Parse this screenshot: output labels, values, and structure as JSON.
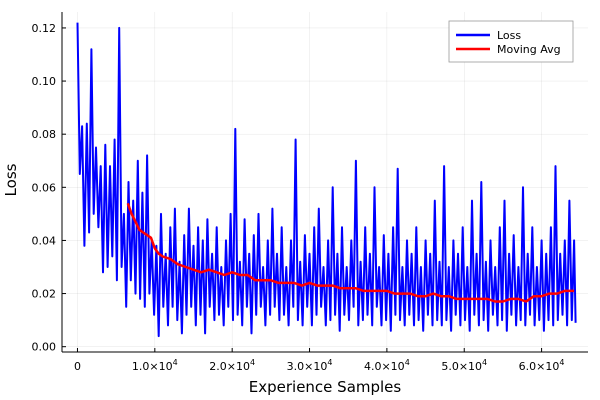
{
  "chart_data": {
    "type": "line",
    "title": "",
    "xlabel": "Experience Samples",
    "ylabel": "Loss",
    "xlim": [
      -2000,
      66000
    ],
    "ylim": [
      -0.002,
      0.126
    ],
    "grid": true,
    "legend_position": "top-right",
    "x_ticks": [
      {
        "value": 0,
        "mantissa": "0",
        "exp": ""
      },
      {
        "value": 10000,
        "mantissa": "1.0×10",
        "exp": "4"
      },
      {
        "value": 20000,
        "mantissa": "2.0×10",
        "exp": "4"
      },
      {
        "value": 30000,
        "mantissa": "3.0×10",
        "exp": "4"
      },
      {
        "value": 40000,
        "mantissa": "4.0×10",
        "exp": "4"
      },
      {
        "value": 50000,
        "mantissa": "5.0×10",
        "exp": "4"
      },
      {
        "value": 60000,
        "mantissa": "6.0×10",
        "exp": "4"
      }
    ],
    "y_ticks": [
      {
        "value": 0.0,
        "label": "0.00"
      },
      {
        "value": 0.02,
        "label": "0.02"
      },
      {
        "value": 0.04,
        "label": "0.04"
      },
      {
        "value": 0.06,
        "label": "0.06"
      },
      {
        "value": 0.08,
        "label": "0.08"
      },
      {
        "value": 0.1,
        "label": "0.10"
      },
      {
        "value": 0.12,
        "label": "0.12"
      }
    ],
    "series": [
      {
        "name": "Loss",
        "color": "#0000ff",
        "points": [
          [
            0,
            0.122
          ],
          [
            300,
            0.065
          ],
          [
            600,
            0.083
          ],
          [
            900,
            0.038
          ],
          [
            1200,
            0.084
          ],
          [
            1500,
            0.043
          ],
          [
            1800,
            0.112
          ],
          [
            2100,
            0.05
          ],
          [
            2400,
            0.075
          ],
          [
            2700,
            0.045
          ],
          [
            3000,
            0.068
          ],
          [
            3300,
            0.028
          ],
          [
            3600,
            0.076
          ],
          [
            3900,
            0.03
          ],
          [
            4200,
            0.068
          ],
          [
            4500,
            0.034
          ],
          [
            4800,
            0.078
          ],
          [
            5100,
            0.025
          ],
          [
            5400,
            0.12
          ],
          [
            5700,
            0.03
          ],
          [
            6000,
            0.05
          ],
          [
            6300,
            0.015
          ],
          [
            6600,
            0.062
          ],
          [
            6900,
            0.025
          ],
          [
            7200,
            0.055
          ],
          [
            7500,
            0.02
          ],
          [
            7800,
            0.07
          ],
          [
            8100,
            0.018
          ],
          [
            8400,
            0.058
          ],
          [
            8700,
            0.015
          ],
          [
            9000,
            0.072
          ],
          [
            9300,
            0.02
          ],
          [
            9600,
            0.04
          ],
          [
            9900,
            0.012
          ],
          [
            10200,
            0.038
          ],
          [
            10500,
            0.004
          ],
          [
            10800,
            0.05
          ],
          [
            11100,
            0.015
          ],
          [
            11400,
            0.035
          ],
          [
            11700,
            0.008
          ],
          [
            12000,
            0.045
          ],
          [
            12300,
            0.015
          ],
          [
            12600,
            0.052
          ],
          [
            12900,
            0.01
          ],
          [
            13200,
            0.032
          ],
          [
            13500,
            0.005
          ],
          [
            13800,
            0.042
          ],
          [
            14100,
            0.012
          ],
          [
            14400,
            0.052
          ],
          [
            14700,
            0.015
          ],
          [
            15000,
            0.038
          ],
          [
            15300,
            0.008
          ],
          [
            15600,
            0.045
          ],
          [
            15900,
            0.012
          ],
          [
            16200,
            0.04
          ],
          [
            16500,
            0.005
          ],
          [
            16800,
            0.048
          ],
          [
            17100,
            0.015
          ],
          [
            17400,
            0.035
          ],
          [
            17700,
            0.01
          ],
          [
            18000,
            0.045
          ],
          [
            18300,
            0.012
          ],
          [
            18600,
            0.03
          ],
          [
            18900,
            0.008
          ],
          [
            19200,
            0.04
          ],
          [
            19500,
            0.015
          ],
          [
            19800,
            0.05
          ],
          [
            20100,
            0.01
          ],
          [
            20400,
            0.082
          ],
          [
            20700,
            0.012
          ],
          [
            21000,
            0.032
          ],
          [
            21300,
            0.008
          ],
          [
            21600,
            0.048
          ],
          [
            21900,
            0.015
          ],
          [
            22200,
            0.035
          ],
          [
            22500,
            0.005
          ],
          [
            22800,
            0.042
          ],
          [
            23100,
            0.012
          ],
          [
            23400,
            0.05
          ],
          [
            23700,
            0.015
          ],
          [
            24000,
            0.03
          ],
          [
            24300,
            0.008
          ],
          [
            24600,
            0.04
          ],
          [
            24900,
            0.012
          ],
          [
            25200,
            0.052
          ],
          [
            25500,
            0.015
          ],
          [
            25800,
            0.035
          ],
          [
            26100,
            0.01
          ],
          [
            26400,
            0.045
          ],
          [
            26700,
            0.012
          ],
          [
            27000,
            0.03
          ],
          [
            27300,
            0.008
          ],
          [
            27600,
            0.04
          ],
          [
            27900,
            0.015
          ],
          [
            28200,
            0.078
          ],
          [
            28500,
            0.01
          ],
          [
            28800,
            0.032
          ],
          [
            29100,
            0.008
          ],
          [
            29400,
            0.042
          ],
          [
            29700,
            0.015
          ],
          [
            30000,
            0.035
          ],
          [
            30300,
            0.008
          ],
          [
            30600,
            0.045
          ],
          [
            30900,
            0.012
          ],
          [
            31200,
            0.052
          ],
          [
            31500,
            0.015
          ],
          [
            31800,
            0.03
          ],
          [
            32100,
            0.008
          ],
          [
            32400,
            0.04
          ],
          [
            32700,
            0.01
          ],
          [
            33000,
            0.06
          ],
          [
            33300,
            0.012
          ],
          [
            33600,
            0.035
          ],
          [
            33900,
            0.006
          ],
          [
            34200,
            0.045
          ],
          [
            34500,
            0.012
          ],
          [
            34800,
            0.03
          ],
          [
            35100,
            0.01
          ],
          [
            35400,
            0.04
          ],
          [
            35700,
            0.015
          ],
          [
            36000,
            0.07
          ],
          [
            36300,
            0.008
          ],
          [
            36600,
            0.032
          ],
          [
            36900,
            0.01
          ],
          [
            37200,
            0.045
          ],
          [
            37500,
            0.012
          ],
          [
            37800,
            0.035
          ],
          [
            38100,
            0.008
          ],
          [
            38400,
            0.06
          ],
          [
            38700,
            0.015
          ],
          [
            39000,
            0.03
          ],
          [
            39300,
            0.008
          ],
          [
            39600,
            0.042
          ],
          [
            39900,
            0.01
          ],
          [
            40200,
            0.035
          ],
          [
            40500,
            0.006
          ],
          [
            40800,
            0.045
          ],
          [
            41100,
            0.012
          ],
          [
            41400,
            0.067
          ],
          [
            41700,
            0.01
          ],
          [
            42000,
            0.03
          ],
          [
            42300,
            0.008
          ],
          [
            42600,
            0.04
          ],
          [
            42900,
            0.012
          ],
          [
            43200,
            0.035
          ],
          [
            43500,
            0.008
          ],
          [
            43800,
            0.045
          ],
          [
            44100,
            0.01
          ],
          [
            44400,
            0.03
          ],
          [
            44700,
            0.006
          ],
          [
            45000,
            0.04
          ],
          [
            45300,
            0.012
          ],
          [
            45600,
            0.035
          ],
          [
            45900,
            0.008
          ],
          [
            46200,
            0.055
          ],
          [
            46500,
            0.01
          ],
          [
            46800,
            0.032
          ],
          [
            47100,
            0.008
          ],
          [
            47400,
            0.068
          ],
          [
            47700,
            0.01
          ],
          [
            48000,
            0.03
          ],
          [
            48300,
            0.006
          ],
          [
            48600,
            0.04
          ],
          [
            48900,
            0.012
          ],
          [
            49200,
            0.035
          ],
          [
            49500,
            0.008
          ],
          [
            49800,
            0.045
          ],
          [
            50100,
            0.01
          ],
          [
            50400,
            0.03
          ],
          [
            50700,
            0.006
          ],
          [
            51000,
            0.055
          ],
          [
            51300,
            0.012
          ],
          [
            51600,
            0.035
          ],
          [
            51900,
            0.008
          ],
          [
            52200,
            0.062
          ],
          [
            52500,
            0.01
          ],
          [
            52800,
            0.032
          ],
          [
            53100,
            0.006
          ],
          [
            53400,
            0.04
          ],
          [
            53700,
            0.012
          ],
          [
            54000,
            0.03
          ],
          [
            54300,
            0.008
          ],
          [
            54600,
            0.045
          ],
          [
            54900,
            0.01
          ],
          [
            55200,
            0.055
          ],
          [
            55500,
            0.006
          ],
          [
            55800,
            0.035
          ],
          [
            56100,
            0.012
          ],
          [
            56400,
            0.042
          ],
          [
            56700,
            0.008
          ],
          [
            57000,
            0.03
          ],
          [
            57300,
            0.01
          ],
          [
            57600,
            0.06
          ],
          [
            57900,
            0.008
          ],
          [
            58200,
            0.035
          ],
          [
            58500,
            0.012
          ],
          [
            58800,
            0.045
          ],
          [
            59100,
            0.008
          ],
          [
            59400,
            0.03
          ],
          [
            59700,
            0.01
          ],
          [
            60000,
            0.04
          ],
          [
            60300,
            0.006
          ],
          [
            60600,
            0.035
          ],
          [
            60900,
            0.01
          ],
          [
            61200,
            0.045
          ],
          [
            61500,
            0.008
          ],
          [
            61800,
            0.068
          ],
          [
            62100,
            0.01
          ],
          [
            62400,
            0.035
          ],
          [
            62700,
            0.012
          ],
          [
            63000,
            0.04
          ],
          [
            63300,
            0.008
          ],
          [
            63600,
            0.055
          ],
          [
            63900,
            0.01
          ],
          [
            64200,
            0.04
          ],
          [
            64400,
            0.009
          ]
        ]
      },
      {
        "name": "Moving Avg",
        "color": "#ff0000",
        "points": [
          [
            6500,
            0.054
          ],
          [
            7000,
            0.05
          ],
          [
            7500,
            0.047
          ],
          [
            8000,
            0.044
          ],
          [
            8500,
            0.043
          ],
          [
            9000,
            0.042
          ],
          [
            9500,
            0.041
          ],
          [
            10000,
            0.037
          ],
          [
            10500,
            0.035
          ],
          [
            11000,
            0.034
          ],
          [
            12000,
            0.033
          ],
          [
            13000,
            0.031
          ],
          [
            14000,
            0.03
          ],
          [
            15000,
            0.029
          ],
          [
            16000,
            0.028
          ],
          [
            17000,
            0.029
          ],
          [
            18000,
            0.028
          ],
          [
            19000,
            0.027
          ],
          [
            20000,
            0.028
          ],
          [
            21000,
            0.027
          ],
          [
            22000,
            0.027
          ],
          [
            23000,
            0.025
          ],
          [
            24000,
            0.025
          ],
          [
            25000,
            0.025
          ],
          [
            26000,
            0.024
          ],
          [
            27000,
            0.024
          ],
          [
            28000,
            0.024
          ],
          [
            29000,
            0.023
          ],
          [
            30000,
            0.024
          ],
          [
            31000,
            0.023
          ],
          [
            32000,
            0.023
          ],
          [
            33000,
            0.023
          ],
          [
            34000,
            0.022
          ],
          [
            35000,
            0.022
          ],
          [
            36000,
            0.022
          ],
          [
            37000,
            0.021
          ],
          [
            38000,
            0.021
          ],
          [
            39000,
            0.021
          ],
          [
            40000,
            0.021
          ],
          [
            41000,
            0.02
          ],
          [
            42000,
            0.02
          ],
          [
            43000,
            0.02
          ],
          [
            44000,
            0.019
          ],
          [
            45000,
            0.019
          ],
          [
            46000,
            0.02
          ],
          [
            47000,
            0.019
          ],
          [
            48000,
            0.019
          ],
          [
            49000,
            0.018
          ],
          [
            50000,
            0.018
          ],
          [
            51000,
            0.018
          ],
          [
            52000,
            0.018
          ],
          [
            53000,
            0.018
          ],
          [
            54000,
            0.017
          ],
          [
            55000,
            0.017
          ],
          [
            56000,
            0.018
          ],
          [
            57000,
            0.018
          ],
          [
            58000,
            0.017
          ],
          [
            59000,
            0.019
          ],
          [
            60000,
            0.019
          ],
          [
            61000,
            0.02
          ],
          [
            62000,
            0.02
          ],
          [
            63000,
            0.021
          ],
          [
            64200,
            0.021
          ]
        ]
      }
    ]
  }
}
